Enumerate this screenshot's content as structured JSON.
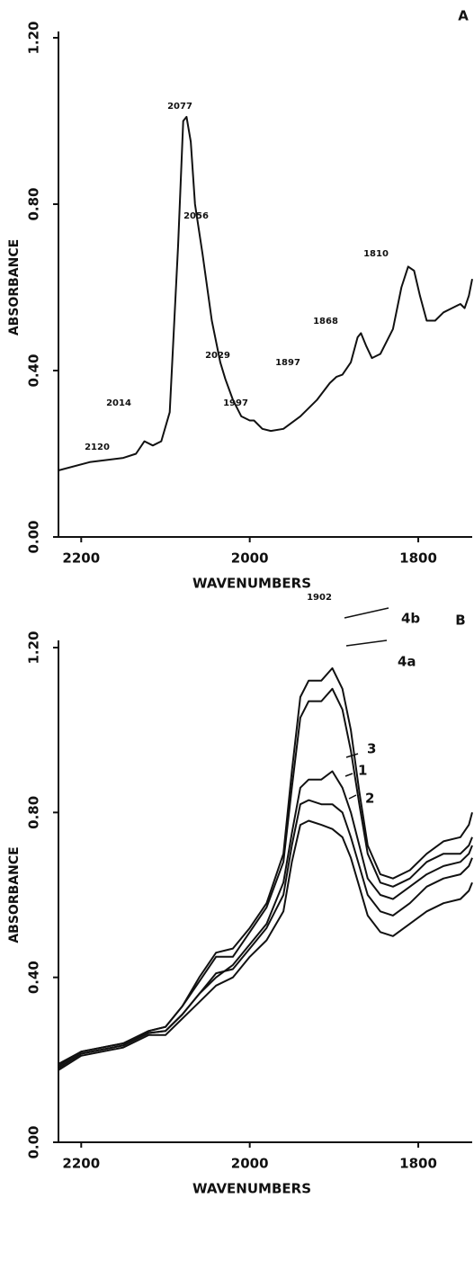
{
  "chart_data": [
    {
      "type": "line",
      "panel_label": "A",
      "xlabel": "WAVENUMBERS",
      "ylabel": "ABSORBANCE",
      "color": "#111111",
      "xlim": [
        2227,
        1736
      ],
      "xticks": [
        2200,
        2000,
        1800
      ],
      "ylim": [
        0,
        1.2
      ],
      "yticks": [
        {
          "value": 0,
          "label": "0.00"
        },
        {
          "value": 0.4,
          "label": "0.40"
        },
        {
          "value": 0.8,
          "label": "0.80"
        },
        {
          "value": 1.2,
          "label": "1.20"
        }
      ],
      "x": [
        2227,
        2190,
        2150,
        2135,
        2125,
        2115,
        2105,
        2095,
        2085,
        2079,
        2075,
        2070,
        2065,
        2056,
        2045,
        2035,
        2029,
        2020,
        2010,
        2000,
        1995,
        1985,
        1975,
        1960,
        1940,
        1920,
        1905,
        1897,
        1890,
        1880,
        1872,
        1868,
        1862,
        1855,
        1845,
        1830,
        1820,
        1812,
        1805,
        1798,
        1790,
        1780,
        1770,
        1760,
        1750,
        1745,
        1740,
        1736
      ],
      "values": [
        0.16,
        0.18,
        0.19,
        0.2,
        0.23,
        0.22,
        0.23,
        0.3,
        0.7,
        1.0,
        1.01,
        0.95,
        0.8,
        0.68,
        0.52,
        0.42,
        0.38,
        0.33,
        0.29,
        0.28,
        0.28,
        0.26,
        0.255,
        0.26,
        0.29,
        0.33,
        0.37,
        0.385,
        0.39,
        0.42,
        0.48,
        0.49,
        0.46,
        0.43,
        0.44,
        0.5,
        0.6,
        0.65,
        0.64,
        0.58,
        0.52,
        0.52,
        0.54,
        0.55,
        0.56,
        0.55,
        0.58,
        0.62
      ],
      "annotations": [
        "2120",
        "2014",
        "2077",
        "2056",
        "2029",
        "1997",
        "1897",
        "1868",
        "1810"
      ]
    },
    {
      "type": "line",
      "panel_label": "B",
      "xlabel": "WAVENUMBERS",
      "ylabel": "ABSORBANCE",
      "xlim": [
        2227,
        1736
      ],
      "xticks": [
        2200,
        2000,
        1800
      ],
      "ylim": [
        0,
        1.2
      ],
      "yticks": [
        {
          "value": 0,
          "label": "0.00"
        },
        {
          "value": 0.4,
          "label": "0.40"
        },
        {
          "value": 0.8,
          "label": "0.80"
        },
        {
          "value": 1.2,
          "label": "1.20"
        }
      ],
      "annotations": [
        "1902"
      ],
      "x": [
        2227,
        2200,
        2150,
        2120,
        2100,
        2080,
        2060,
        2040,
        2020,
        2000,
        1980,
        1960,
        1950,
        1940,
        1930,
        1915,
        1902,
        1890,
        1880,
        1870,
        1860,
        1845,
        1830,
        1810,
        1790,
        1770,
        1750,
        1740,
        1736
      ],
      "series": [
        {
          "name": "4b",
          "color": "#111111",
          "values": [
            0.19,
            0.22,
            0.24,
            0.27,
            0.28,
            0.33,
            0.4,
            0.46,
            0.47,
            0.52,
            0.58,
            0.7,
            0.9,
            1.08,
            1.12,
            1.12,
            1.15,
            1.1,
            1.0,
            0.85,
            0.72,
            0.65,
            0.64,
            0.66,
            0.7,
            0.73,
            0.74,
            0.77,
            0.8
          ]
        },
        {
          "name": "4a",
          "color": "#111111",
          "values": [
            0.185,
            0.22,
            0.24,
            0.27,
            0.28,
            0.33,
            0.39,
            0.45,
            0.45,
            0.51,
            0.57,
            0.68,
            0.86,
            1.03,
            1.07,
            1.07,
            1.1,
            1.05,
            0.95,
            0.82,
            0.7,
            0.63,
            0.62,
            0.64,
            0.68,
            0.7,
            0.7,
            0.72,
            0.74
          ]
        },
        {
          "name": "3",
          "color": "#111111",
          "values": [
            0.18,
            0.215,
            0.235,
            0.265,
            0.27,
            0.31,
            0.36,
            0.4,
            0.43,
            0.48,
            0.53,
            0.63,
            0.75,
            0.86,
            0.88,
            0.88,
            0.9,
            0.86,
            0.8,
            0.72,
            0.64,
            0.6,
            0.59,
            0.62,
            0.65,
            0.67,
            0.68,
            0.7,
            0.72
          ]
        },
        {
          "name": "1",
          "color": "#111111",
          "values": [
            0.18,
            0.215,
            0.235,
            0.265,
            0.27,
            0.31,
            0.36,
            0.41,
            0.42,
            0.47,
            0.52,
            0.6,
            0.72,
            0.82,
            0.83,
            0.82,
            0.82,
            0.8,
            0.74,
            0.67,
            0.6,
            0.56,
            0.55,
            0.58,
            0.62,
            0.64,
            0.65,
            0.67,
            0.69
          ]
        },
        {
          "name": "2",
          "color": "#111111",
          "values": [
            0.175,
            0.21,
            0.23,
            0.26,
            0.26,
            0.3,
            0.34,
            0.38,
            0.4,
            0.45,
            0.49,
            0.56,
            0.68,
            0.77,
            0.78,
            0.77,
            0.76,
            0.74,
            0.69,
            0.62,
            0.55,
            0.51,
            0.5,
            0.53,
            0.56,
            0.58,
            0.59,
            0.61,
            0.63
          ]
        }
      ]
    }
  ]
}
